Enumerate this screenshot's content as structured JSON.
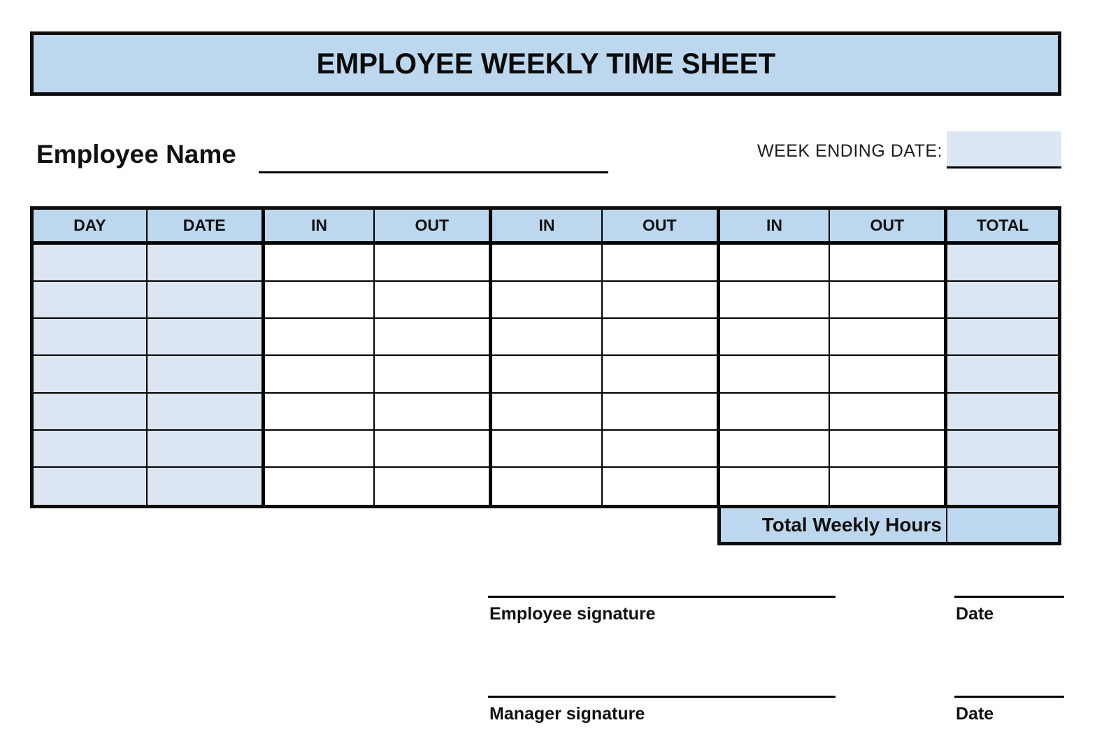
{
  "header": {
    "title": "EMPLOYEE WEEKLY TIME SHEET"
  },
  "fields": {
    "employee_name_label": "Employee Name",
    "employee_name_value": "",
    "week_ending_label": "WEEK ENDING DATE:",
    "week_ending_value": ""
  },
  "table": {
    "headers": [
      "DAY",
      "DATE",
      "IN",
      "OUT",
      "IN",
      "OUT",
      "IN",
      "OUT",
      "TOTAL"
    ],
    "rows": [
      [
        "",
        "",
        "",
        "",
        "",
        "",
        "",
        "",
        ""
      ],
      [
        "",
        "",
        "",
        "",
        "",
        "",
        "",
        "",
        ""
      ],
      [
        "",
        "",
        "",
        "",
        "",
        "",
        "",
        "",
        ""
      ],
      [
        "",
        "",
        "",
        "",
        "",
        "",
        "",
        "",
        ""
      ],
      [
        "",
        "",
        "",
        "",
        "",
        "",
        "",
        "",
        ""
      ],
      [
        "",
        "",
        "",
        "",
        "",
        "",
        "",
        "",
        ""
      ],
      [
        "",
        "",
        "",
        "",
        "",
        "",
        "",
        "",
        ""
      ]
    ],
    "total_label": "Total Weekly Hours",
    "total_value": ""
  },
  "signatures": {
    "employee_label": "Employee signature",
    "employee_date_label": "Date",
    "manager_label": "Manager signature",
    "manager_date_label": "Date"
  },
  "colors": {
    "title_bar_blue": "#bdd7ee",
    "header_blue": "#bdd7ee",
    "row_light_blue": "#dce6f2",
    "total_row_blue": "#bdd7ee",
    "border_black": "#0d0d0d"
  }
}
